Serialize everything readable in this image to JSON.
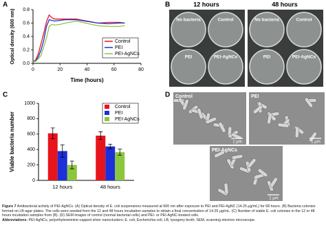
{
  "panel_labels": [
    "A",
    "B",
    "C",
    "D"
  ],
  "chart_data": [
    {
      "type": "line",
      "ylabel": "Optical density (600 nm)",
      "xlabel": "Time (hours)",
      "x": [
        0,
        2,
        4,
        6,
        8,
        10,
        12,
        14,
        16,
        20,
        24,
        32,
        48,
        56,
        64,
        68
      ],
      "series": [
        {
          "name": "Control",
          "color": "#e8141c",
          "values": [
            0.02,
            0.05,
            0.15,
            0.3,
            0.45,
            0.62,
            0.72,
            0.68,
            0.66,
            0.66,
            0.66,
            0.66,
            0.6,
            0.61,
            0.61,
            0.6
          ]
        },
        {
          "name": "PEI",
          "color": "#1c2fd8",
          "values": [
            0.02,
            0.04,
            0.1,
            0.2,
            0.35,
            0.55,
            0.65,
            0.64,
            0.63,
            0.64,
            0.65,
            0.65,
            0.6,
            0.59,
            0.6,
            0.6
          ]
        },
        {
          "name": "PEI-AgNCs",
          "color": "#8cc63f",
          "values": [
            0.02,
            0.03,
            0.07,
            0.12,
            0.25,
            0.38,
            0.55,
            0.58,
            0.57,
            0.58,
            0.6,
            0.63,
            0.56,
            0.55,
            0.55,
            0.56
          ]
        }
      ],
      "xlim": [
        0,
        80
      ],
      "xticks": [
        0,
        20,
        40,
        60,
        80
      ],
      "ylim": [
        0,
        0.8
      ],
      "yticks": [
        {
          "value": 0,
          "label": "0.0"
        },
        0.2,
        0.4,
        0.6,
        0.8
      ]
    },
    {
      "type": "bar",
      "ylabel": "Viable bacteria number",
      "categories": [
        "12 hours",
        "48 hours"
      ],
      "series": [
        {
          "name": "Control",
          "color": "#e8141c",
          "values": [
            610,
            580
          ],
          "errors": [
            70,
            50
          ]
        },
        {
          "name": "PEI",
          "color": "#1c2fd8",
          "values": [
            380,
            440
          ],
          "errors": [
            80,
            30
          ]
        },
        {
          "name": "PEI-AgNCs",
          "color": "#8cc63f",
          "values": [
            200,
            365
          ],
          "errors": [
            50,
            40
          ]
        }
      ],
      "ylim": [
        0,
        1000
      ],
      "yticks": [
        0,
        200,
        400,
        600,
        800,
        1000
      ]
    }
  ],
  "plates": {
    "headers": [
      "12 hours",
      "48 hours"
    ],
    "labels": [
      [
        "No bacteria",
        "Control",
        "PEI",
        "PEI-AgNCs"
      ],
      [
        "No bacteria",
        "Control",
        "PEI",
        "PEI-AgNCs"
      ]
    ]
  },
  "sem": {
    "labels": [
      "Control",
      "PEI",
      "PEI-AgNCs"
    ],
    "scale": [
      "1 μm",
      "1 μm",
      "1 μm"
    ]
  },
  "caption": {
    "label": "Figure 7",
    "text": "Antibacterial activity of PEI-AgNCs. (A) Optical density of E. coli suspensions measured at 600 nm after exposure to PEI and PEI-AgNC (14.25 μg/mL) for 68 hours. (B) Bacteria colonies formed on LB-agar plates. The cells were seeded from the 12 and 48 hours incubation samples to obtain a final concentration of 14.25 μg/mL. (C) Number of viable E. coli colonies in the 12 or 48 hours incubation samples from (B). (D) SEM images of control (normal bacterial cells) and PEI- or PEI-AgNC-treated cells.",
    "abbr_label": "Abbreviations:",
    "abbr_text": "PEI-AgNCs, polyethyleneimine-capped silver nanoclusters; E. coli, Escherichia coli; LB, lysogeny broth; SEM, scanning electron microscope."
  }
}
